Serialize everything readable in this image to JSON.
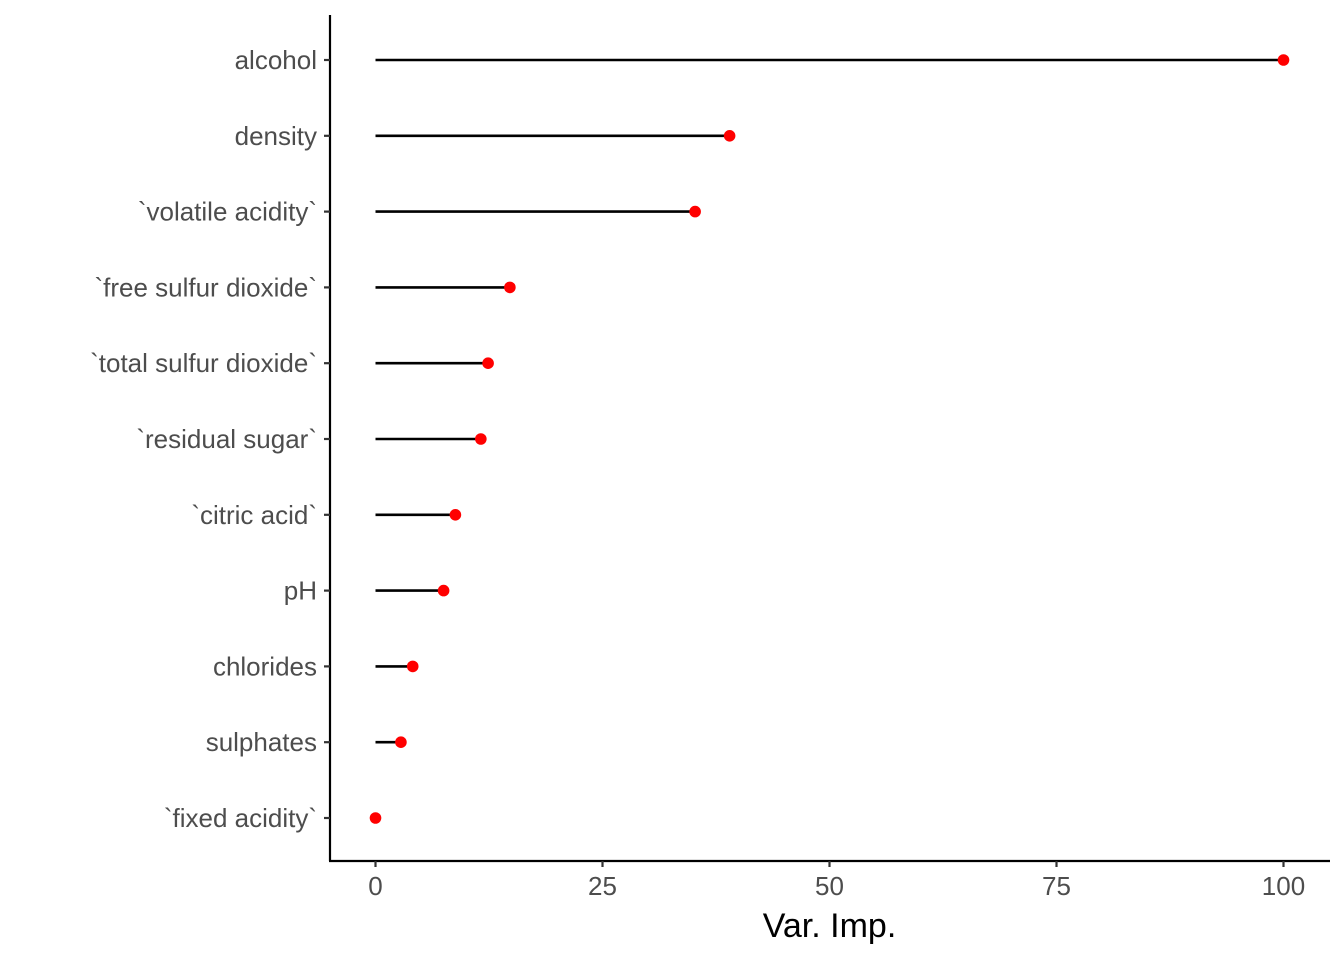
{
  "chart_data": {
    "type": "lollipop",
    "title": "",
    "xlabel": "Var. Imp.",
    "ylabel": "",
    "xlim": [
      0,
      100
    ],
    "x_ticks": [
      0,
      25,
      50,
      75,
      100
    ],
    "x_tick_labels": [
      "0",
      "25",
      "50",
      "75",
      "100"
    ],
    "grid": false,
    "legend": "none",
    "colors": {
      "stem": "#000000",
      "point": "#ff0000",
      "axis": "#000000",
      "tick_label": "#4d4d4d"
    },
    "categories": [
      "alcohol",
      "density",
      "`volatile acidity`",
      "`free sulfur dioxide`",
      "`total sulfur dioxide`",
      "`residual sugar`",
      "`citric acid`",
      "pH",
      "chlorides",
      "sulphates",
      "`fixed acidity`"
    ],
    "values": [
      100,
      39.0,
      35.2,
      14.8,
      12.4,
      11.6,
      8.8,
      7.5,
      4.1,
      2.8,
      0
    ]
  }
}
